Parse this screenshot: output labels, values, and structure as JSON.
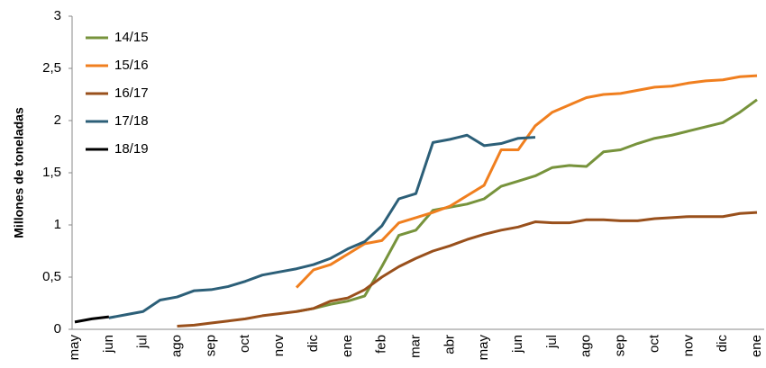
{
  "chart_data": {
    "type": "line",
    "y_label": "Millones de toneladas",
    "categories": [
      "may",
      null,
      "jun",
      null,
      "jul",
      null,
      "ago",
      null,
      "sep",
      null,
      "oct",
      null,
      "nov",
      null,
      "dic",
      null,
      "ene",
      null,
      "feb",
      null,
      "mar",
      null,
      "abr",
      null,
      "may",
      null,
      "jun",
      null,
      "jul",
      null,
      "ago",
      null,
      "sep",
      null,
      "oct",
      null,
      "nov",
      null,
      "dic",
      null,
      "ene"
    ],
    "series": [
      {
        "name": "14/15",
        "color": "#77933c",
        "values": [
          null,
          null,
          null,
          null,
          null,
          null,
          null,
          null,
          null,
          null,
          null,
          null,
          null,
          0.17,
          0.2,
          0.24,
          0.27,
          0.32,
          0.6,
          0.9,
          0.95,
          1.14,
          1.17,
          1.2,
          1.25,
          1.37,
          1.42,
          1.47,
          1.55,
          1.57,
          1.56,
          1.7,
          1.72,
          1.78,
          1.83,
          1.86,
          1.9,
          1.94,
          1.98,
          2.08,
          2.2
        ]
      },
      {
        "name": "15/16",
        "color": "#f07f1f",
        "values": [
          null,
          null,
          null,
          null,
          null,
          null,
          null,
          null,
          null,
          null,
          null,
          null,
          null,
          0.4,
          0.57,
          0.62,
          0.72,
          0.82,
          0.85,
          1.02,
          1.07,
          1.12,
          1.18,
          1.28,
          1.38,
          1.72,
          1.72,
          1.95,
          2.08,
          2.15,
          2.22,
          2.25,
          2.26,
          2.29,
          2.32,
          2.33,
          2.36,
          2.38,
          2.39,
          2.42,
          2.43
        ]
      },
      {
        "name": "16/17",
        "color": "#99501c",
        "values": [
          null,
          null,
          null,
          null,
          null,
          null,
          0.03,
          0.04,
          0.06,
          0.08,
          0.1,
          0.13,
          0.15,
          0.17,
          0.2,
          0.27,
          0.3,
          0.38,
          0.5,
          0.6,
          0.68,
          0.75,
          0.8,
          0.86,
          0.91,
          0.95,
          0.98,
          1.03,
          1.02,
          1.02,
          1.05,
          1.05,
          1.04,
          1.04,
          1.06,
          1.07,
          1.08,
          1.08,
          1.08,
          1.11,
          1.12
        ]
      },
      {
        "name": "17/18",
        "color": "#2c5f78",
        "values": [
          null,
          null,
          0.11,
          0.14,
          0.17,
          0.28,
          0.31,
          0.37,
          0.38,
          0.41,
          0.46,
          0.52,
          0.55,
          0.58,
          0.62,
          0.68,
          0.77,
          0.84,
          0.99,
          1.25,
          1.3,
          1.79,
          1.82,
          1.86,
          1.76,
          1.78,
          1.83,
          1.84,
          null,
          null,
          null,
          null,
          null,
          null,
          null,
          null,
          null,
          null,
          null,
          null,
          null
        ]
      },
      {
        "name": "18/19",
        "color": "#000000",
        "values": [
          0.07,
          0.1,
          0.12,
          null,
          null,
          null,
          null,
          null,
          null,
          null,
          null,
          null,
          null,
          null,
          null,
          null,
          null,
          null,
          null,
          null,
          null,
          null,
          null,
          null,
          null,
          null,
          null,
          null,
          null,
          null,
          null,
          null,
          null,
          null,
          null,
          null,
          null,
          null,
          null,
          null,
          null
        ]
      }
    ],
    "ylim": [
      0,
      3
    ],
    "yticks": [
      0,
      {
        "value": 0.5,
        "label": "0,5"
      },
      1,
      {
        "value": 1.5,
        "label": "1,5"
      },
      2,
      {
        "value": 2.5,
        "label": "2,5"
      },
      3
    ],
    "grid": false,
    "legend": "top-left"
  }
}
